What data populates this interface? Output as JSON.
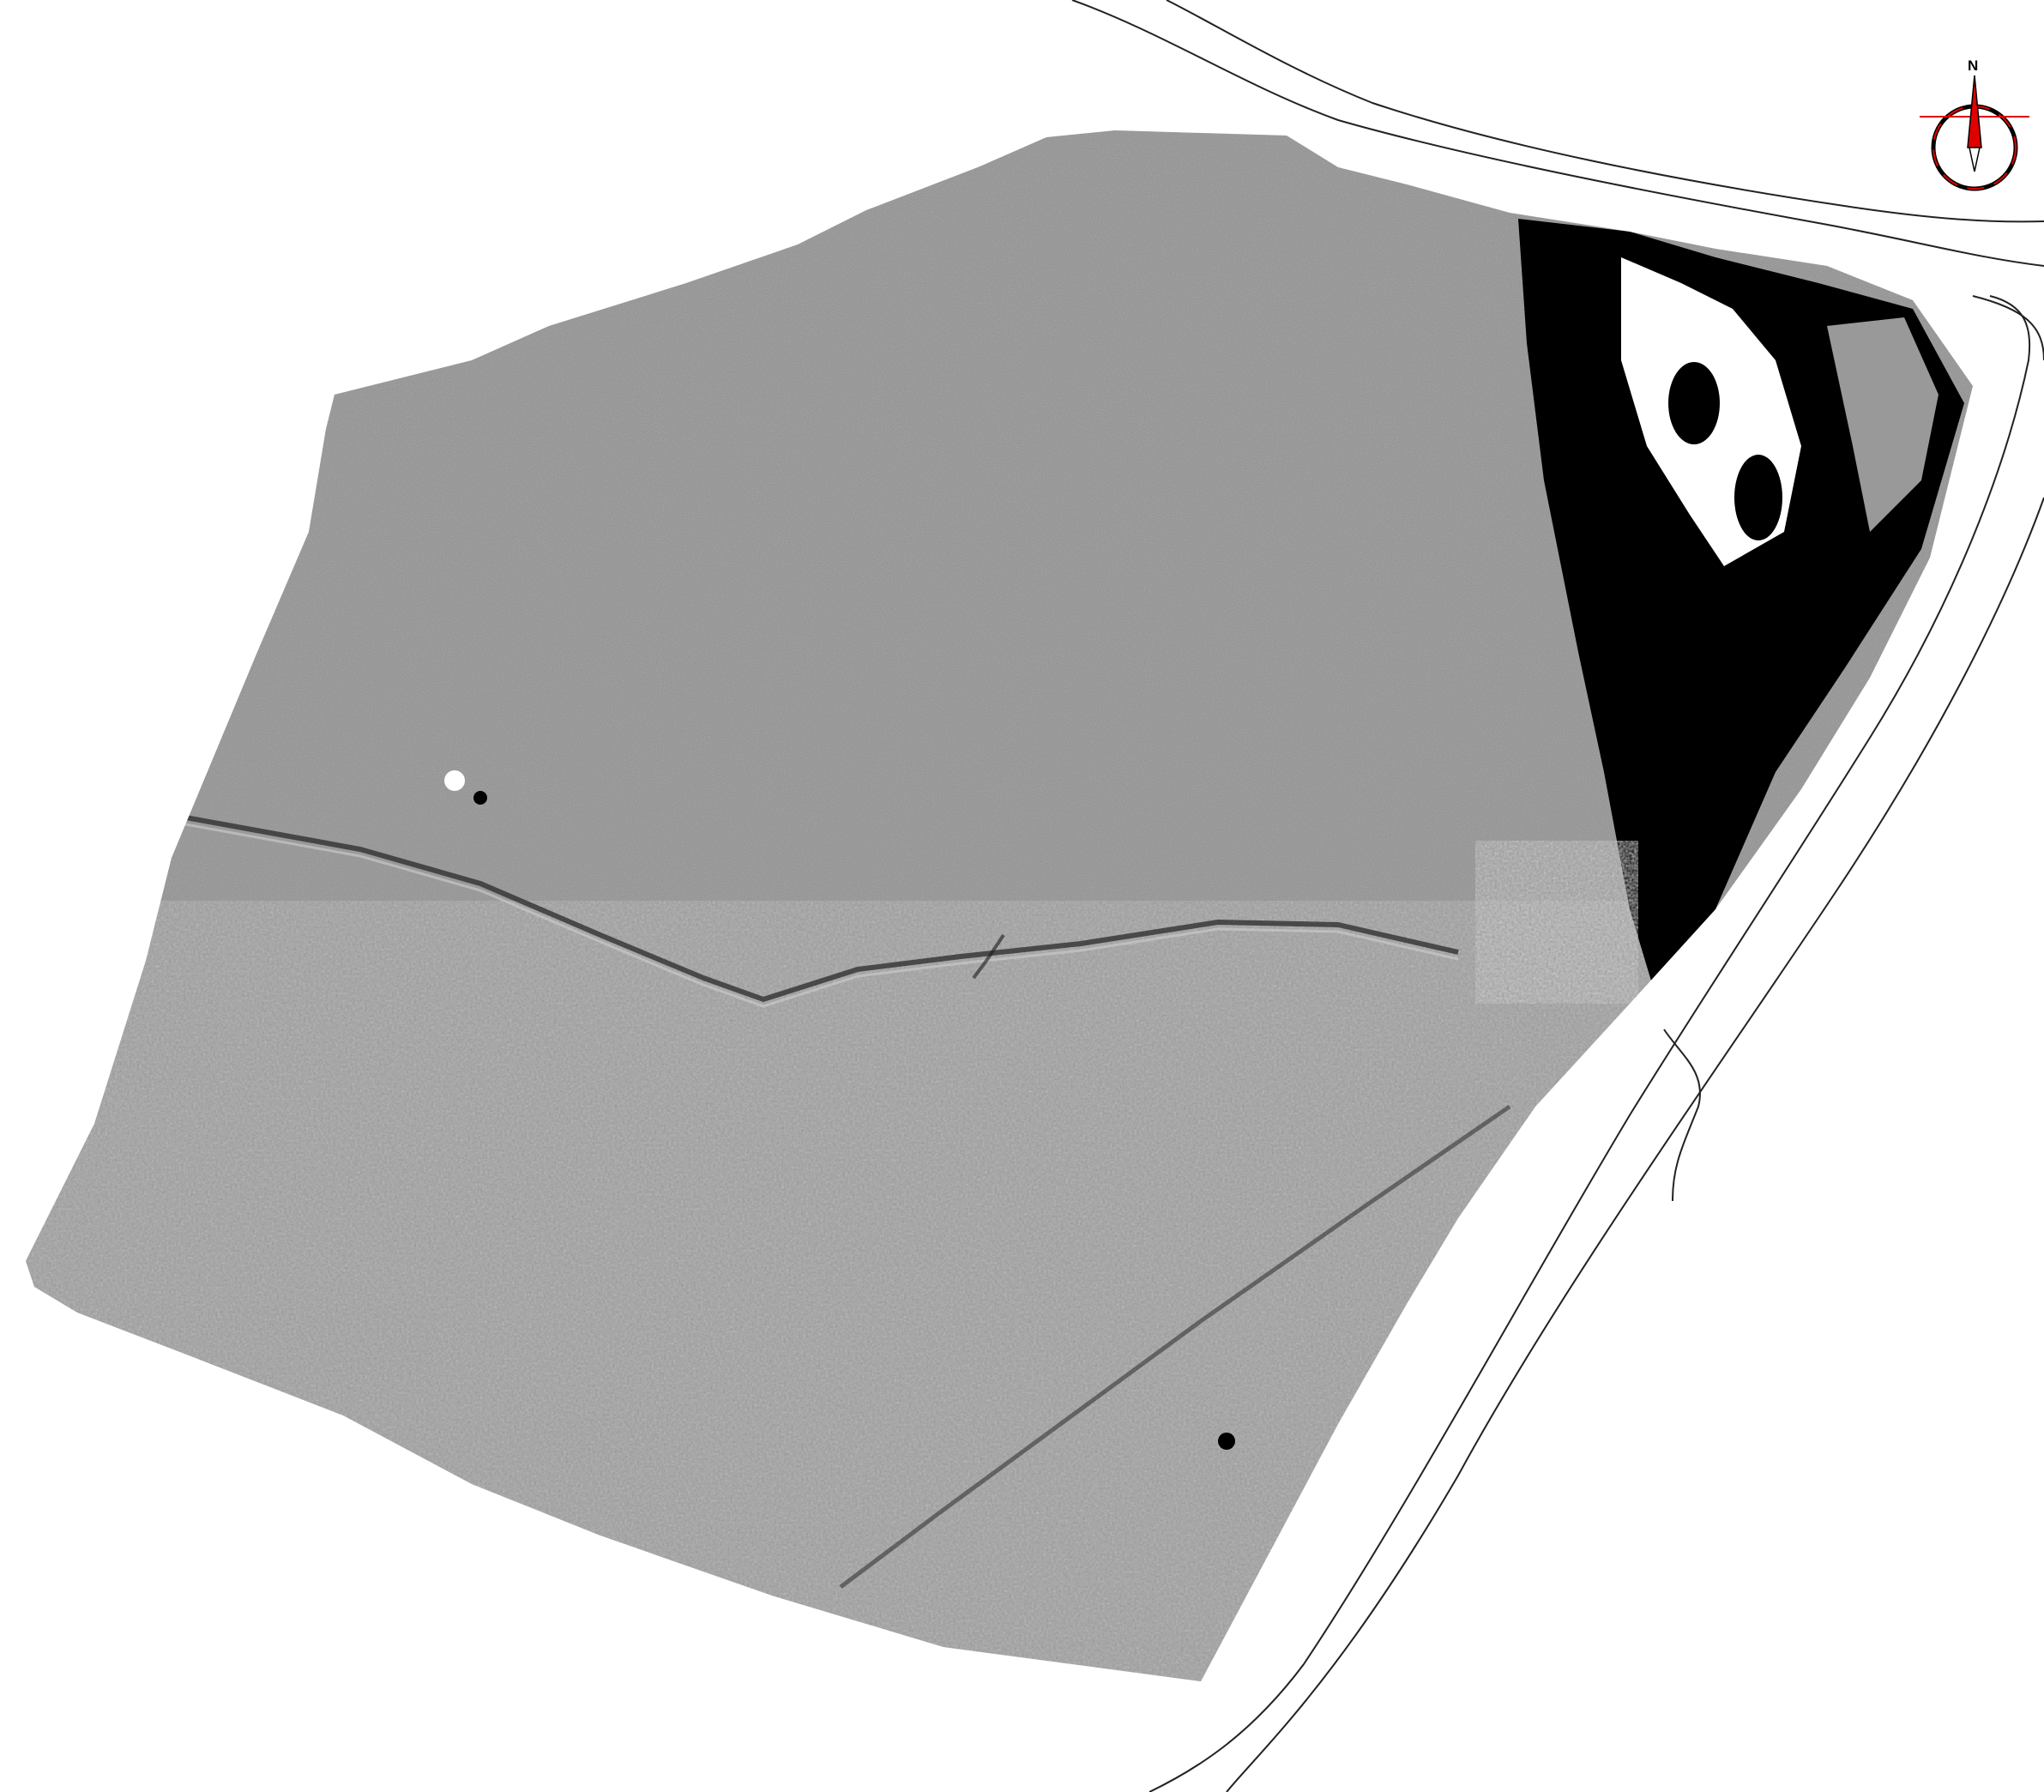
{
  "map": {
    "type": "geophysical survey plot (greyscale)",
    "background_color": "#ffffff",
    "survey_grey": "#8a8a8a",
    "anomaly_dark": "#000000",
    "anomaly_light": "#ffffff",
    "boundary_line_color": "#222222"
  },
  "north_arrow": {
    "label": "N",
    "icon": "compass-north-arrow-icon",
    "accent_color": "#e00000"
  }
}
